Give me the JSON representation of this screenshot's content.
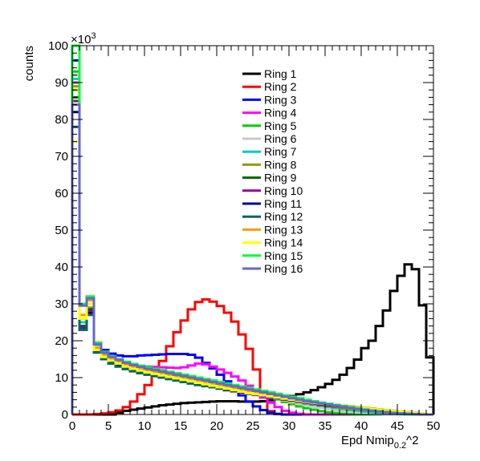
{
  "chart_data": {
    "type": "line",
    "title": "",
    "xlabel": "Epd Nmip",
    "xlabel_sub": "0.2",
    "xlabel_suffix": "^2",
    "ylabel": "counts",
    "y_multiplier": "×10",
    "y_multiplier_exp": "3",
    "xlim": [
      0,
      50
    ],
    "ylim": [
      0,
      100
    ],
    "x_ticks": [
      0,
      5,
      10,
      15,
      20,
      25,
      30,
      35,
      40,
      45,
      50
    ],
    "y_ticks": [
      0,
      10,
      20,
      30,
      40,
      50,
      60,
      70,
      80,
      90,
      100
    ],
    "bin_edges": [
      0,
      1,
      2,
      3,
      4,
      5,
      6,
      7,
      8,
      9,
      10,
      11,
      12,
      13,
      14,
      15,
      16,
      17,
      18,
      19,
      20,
      21,
      22,
      23,
      24,
      25,
      26,
      27,
      28,
      29,
      30,
      31,
      32,
      33,
      34,
      35,
      36,
      37,
      38,
      39,
      40,
      41,
      42,
      43,
      44,
      45,
      46,
      47,
      48,
      49,
      50
    ],
    "legend_position": "top-right",
    "series": [
      {
        "name": "Ring 1",
        "color": "#000000",
        "values": [
          0,
          0,
          0,
          0,
          0,
          0,
          0.5,
          1,
          1.3,
          1.6,
          1.9,
          2.2,
          2.5,
          2.7,
          2.9,
          3.1,
          3.2,
          3.3,
          3.4,
          3.5,
          3.6,
          3.6,
          3.6,
          3.5,
          3.5,
          3.5,
          3.6,
          3.9,
          4.2,
          4.6,
          5,
          5.5,
          6,
          6.6,
          7.4,
          8.3,
          9.4,
          10.8,
          12.6,
          14.9,
          18,
          20,
          24,
          28.2,
          33.5,
          37.6,
          40.7,
          39.4,
          29.6,
          15.5
        ]
      },
      {
        "name": "Ring 2",
        "color": "#ff0000",
        "values": [
          0,
          0,
          0,
          0.1,
          0.3,
          0.6,
          1.1,
          2,
          3.5,
          5.5,
          8,
          11,
          14.5,
          18.5,
          22.3,
          25.5,
          28.5,
          30.5,
          31.2,
          30.6,
          29.4,
          27.6,
          25.2,
          21.7,
          17.8,
          12.2,
          5.8,
          0.9,
          0.1,
          0,
          0,
          0,
          0,
          0,
          0,
          0,
          0,
          0,
          0,
          0,
          0,
          0,
          0,
          0,
          0,
          0,
          0,
          0,
          0,
          0
        ]
      },
      {
        "name": "Ring 3",
        "color": "#0000ff",
        "values": [
          96,
          24,
          30,
          19,
          17.5,
          16.5,
          16,
          15.8,
          15.8,
          16,
          16.1,
          16.2,
          16.3,
          16.4,
          16.4,
          16.4,
          16.2,
          15.4,
          14,
          12.5,
          10.8,
          9,
          7.2,
          5.2,
          3.5,
          2.2,
          1.2,
          0.5,
          0.2,
          0,
          0,
          0,
          0,
          0,
          0,
          0,
          0,
          0,
          0,
          0,
          0,
          0,
          0,
          0,
          0,
          0,
          0,
          0,
          0,
          0
        ]
      },
      {
        "name": "Ring 4",
        "color": "#ff00ff",
        "values": [
          90,
          25,
          31,
          18.5,
          16.5,
          15.5,
          14.8,
          14,
          13.5,
          13.2,
          13,
          12.9,
          12.8,
          12.7,
          12.6,
          12.8,
          13.3,
          13.8,
          13.6,
          13,
          12.2,
          11.3,
          10.3,
          9.2,
          7.8,
          6.2,
          4.6,
          3.2,
          2,
          1,
          0.5,
          0.2,
          0,
          0,
          0,
          0,
          0,
          0,
          0,
          0,
          0,
          0,
          0,
          0,
          0,
          0,
          0,
          0,
          0,
          0
        ]
      },
      {
        "name": "Ring 5",
        "color": "#00cc00",
        "values": [
          93,
          26,
          31,
          19,
          16.5,
          15.5,
          14.6,
          13.8,
          13.2,
          12.8,
          12.4,
          12,
          11.6,
          11.3,
          11,
          10.7,
          10.3,
          10,
          9.6,
          9.2,
          8.7,
          8.3,
          7.8,
          7.3,
          6.7,
          6.1,
          5.5,
          4.8,
          4.1,
          3.4,
          2.8,
          2.2,
          1.7,
          1.3,
          0.9,
          0.6,
          0.4,
          0.2,
          0.1,
          0,
          0,
          0,
          0,
          0,
          0,
          0,
          0,
          0,
          0,
          0
        ]
      },
      {
        "name": "Ring 6",
        "color": "#c8c8c8",
        "values": [
          92,
          25,
          30,
          18.5,
          16,
          15,
          14.2,
          13.5,
          12.9,
          12.4,
          12,
          11.6,
          11.2,
          10.8,
          10.4,
          10,
          9.6,
          9.2,
          8.8,
          8.4,
          8,
          7.6,
          7.2,
          6.8,
          6.3,
          5.8,
          5.3,
          4.8,
          4.3,
          3.8,
          3.3,
          2.9,
          2.5,
          2.1,
          1.8,
          1.5,
          1.2,
          0.9,
          0.7,
          0.5,
          0.3,
          0.2,
          0.1,
          0,
          0,
          0,
          0,
          0,
          0,
          0
        ]
      },
      {
        "name": "Ring 7",
        "color": "#00cccc",
        "values": [
          91,
          25,
          30,
          18,
          16,
          14.8,
          14,
          13.3,
          12.7,
          12.2,
          11.8,
          11.4,
          11,
          10.6,
          10.2,
          9.8,
          9.4,
          9,
          8.6,
          8.2,
          7.8,
          7.4,
          7,
          6.6,
          6.2,
          5.8,
          5.4,
          5,
          4.6,
          4.2,
          3.8,
          3.4,
          3,
          2.7,
          2.4,
          2.1,
          1.8,
          1.5,
          1.2,
          1,
          0.8,
          0.6,
          0.4,
          0.3,
          0.2,
          0.1,
          0,
          0,
          0,
          0
        ]
      },
      {
        "name": "Ring 8",
        "color": "#999900",
        "values": [
          89,
          24,
          29,
          17.8,
          15.8,
          14.6,
          13.8,
          13.1,
          12.5,
          12,
          11.6,
          11.2,
          10.8,
          10.4,
          10,
          9.6,
          9.2,
          8.8,
          8.4,
          8,
          7.6,
          7.2,
          6.8,
          6.4,
          6,
          5.6,
          5.2,
          4.8,
          4.4,
          4,
          3.7,
          3.4,
          3.1,
          2.8,
          2.5,
          2.2,
          2,
          1.7,
          1.5,
          1.3,
          1.1,
          0.9,
          0.7,
          0.5,
          0.4,
          0.3,
          0.2,
          0.1,
          0,
          0
        ]
      },
      {
        "name": "Ring 9",
        "color": "#006600",
        "values": [
          86,
          24,
          28.5,
          17.5,
          15.6,
          14.4,
          13.6,
          12.9,
          12.3,
          11.8,
          11.4,
          11,
          10.6,
          10.2,
          9.8,
          9.4,
          9,
          8.6,
          8.2,
          7.8,
          7.4,
          7,
          6.6,
          6.2,
          5.8,
          5.4,
          5,
          4.7,
          4.4,
          4.1,
          3.8,
          3.5,
          3.2,
          2.9,
          2.6,
          2.4,
          2.2,
          2,
          1.8,
          1.6,
          1.4,
          1.2,
          1,
          0.8,
          0.6,
          0.5,
          0.4,
          0.2,
          0.1,
          0
        ]
      },
      {
        "name": "Ring 10",
        "color": "#990099",
        "values": [
          85,
          23.5,
          28,
          17.3,
          15.4,
          14.2,
          13.4,
          12.7,
          12.1,
          11.6,
          11.2,
          10.8,
          10.4,
          10,
          9.6,
          9.2,
          8.8,
          8.4,
          8,
          7.6,
          7.2,
          6.8,
          6.4,
          6,
          5.6,
          5.3,
          5,
          4.7,
          4.4,
          4.1,
          3.8,
          3.5,
          3.2,
          2.9,
          2.7,
          2.5,
          2.3,
          2.1,
          1.9,
          1.7,
          1.5,
          1.3,
          1.1,
          0.9,
          0.7,
          0.6,
          0.4,
          0.3,
          0.1,
          0
        ]
      },
      {
        "name": "Ring 11",
        "color": "#000099",
        "values": [
          82,
          23,
          27.5,
          17,
          15.2,
          14,
          13.2,
          12.5,
          11.9,
          11.4,
          11,
          10.6,
          10.2,
          9.8,
          9.4,
          9,
          8.6,
          8.2,
          7.8,
          7.4,
          7,
          6.6,
          6.3,
          6,
          5.7,
          5.4,
          5.1,
          4.8,
          4.5,
          4.2,
          3.9,
          3.6,
          3.3,
          3,
          2.8,
          2.6,
          2.4,
          2.2,
          2,
          1.8,
          1.6,
          1.4,
          1.2,
          1,
          0.8,
          0.6,
          0.5,
          0.3,
          0.2,
          0
        ]
      },
      {
        "name": "Ring 12",
        "color": "#006666",
        "values": [
          78,
          23,
          27,
          16.8,
          15,
          13.8,
          13,
          12.3,
          11.7,
          11.2,
          10.8,
          10.4,
          10,
          9.6,
          9.2,
          8.8,
          8.4,
          8,
          7.7,
          7.4,
          7.1,
          6.8,
          6.5,
          6.2,
          5.9,
          5.6,
          5.3,
          5,
          4.7,
          4.4,
          4.1,
          3.8,
          3.5,
          3.2,
          3,
          2.8,
          2.6,
          2.4,
          2.2,
          2,
          1.8,
          1.6,
          1.4,
          1.2,
          1,
          0.8,
          0.6,
          0.4,
          0.2,
          0
        ]
      },
      {
        "name": "Ring 13",
        "color": "#ff9900",
        "values": [
          88,
          27,
          31,
          18,
          16,
          15,
          14.2,
          13.4,
          12.8,
          12.2,
          11.8,
          11.4,
          11,
          10.6,
          10.2,
          9.8,
          9.4,
          9,
          8.6,
          8.2,
          7.8,
          7.4,
          7,
          6.6,
          6.2,
          5.8,
          5.4,
          5,
          4.7,
          4.4,
          4.1,
          3.8,
          3.5,
          3.2,
          3,
          2.8,
          2.6,
          2.4,
          2.2,
          2,
          1.8,
          1.6,
          1.4,
          1.2,
          1,
          0.8,
          0.6,
          0.4,
          0.2,
          0
        ]
      },
      {
        "name": "Ring 14",
        "color": "#ffff00",
        "values": [
          74,
          26,
          30,
          17.5,
          15.6,
          14.6,
          13.8,
          13,
          12.4,
          11.9,
          11.4,
          11,
          10.6,
          10.2,
          9.8,
          9.4,
          9,
          8.6,
          8.2,
          7.8,
          7.4,
          7,
          6.6,
          6.2,
          5.8,
          5.5,
          5.2,
          4.9,
          4.6,
          4.3,
          4,
          3.7,
          3.4,
          3.1,
          2.9,
          2.7,
          2.5,
          2.3,
          2.1,
          1.9,
          1.7,
          1.5,
          1.3,
          1.1,
          0.9,
          0.7,
          0.5,
          0.3,
          0.2,
          0
        ]
      },
      {
        "name": "Ring 15",
        "color": "#00ff33",
        "values": [
          100,
          30,
          32,
          19.5,
          17,
          15.8,
          15,
          14.3,
          13.7,
          13.2,
          12.8,
          12.4,
          12,
          11.6,
          11.2,
          10.8,
          10.4,
          10,
          9.6,
          9.2,
          8.8,
          8.4,
          8,
          7.6,
          7.2,
          6.8,
          6.4,
          6,
          5.6,
          5.2,
          4.8,
          4.4,
          4,
          3.6,
          3.2,
          2.9,
          2.6,
          2.3,
          2,
          1.7,
          1.4,
          1.1,
          0.9,
          0.7,
          0.5,
          0.3,
          0.2,
          0.1,
          0,
          0
        ]
      },
      {
        "name": "Ring 16",
        "color": "#6666cc",
        "values": [
          84,
          29.5,
          31.5,
          19,
          16.8,
          15.6,
          14.8,
          14,
          13.4,
          12.9,
          12.4,
          12,
          11.6,
          11.2,
          10.8,
          10.4,
          10,
          9.6,
          9.2,
          8.8,
          8.4,
          8,
          7.6,
          7.2,
          6.8,
          6.4,
          6,
          5.6,
          5.2,
          4.8,
          4.4,
          4,
          3.6,
          3.3,
          3,
          2.7,
          2.4,
          2.1,
          1.8,
          1.5,
          1.2,
          1,
          0.8,
          0.6,
          0.4,
          0.3,
          0.2,
          0.1,
          0,
          0
        ]
      }
    ]
  }
}
